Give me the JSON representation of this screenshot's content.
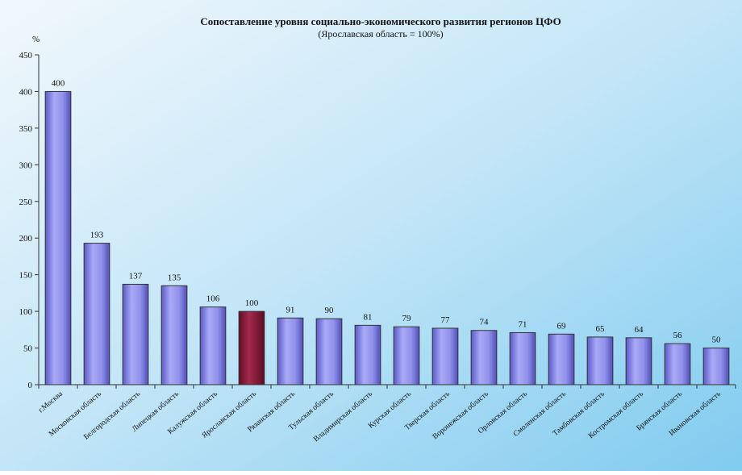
{
  "chart_data": {
    "type": "bar",
    "title": "Сопоставление уровня социально-экономического развития регионов ЦФО",
    "subtitle": "(Ярославская область = 100%)",
    "ylabel": "%",
    "xlabel": "",
    "ylim": [
      0,
      450
    ],
    "yticks": [
      0,
      50,
      100,
      150,
      200,
      250,
      300,
      350,
      400,
      450
    ],
    "grid": false,
    "legend": "none",
    "categories": [
      "г.Москва",
      "Московская область",
      "Белгородская область",
      "Липецкая область",
      "Калужская область",
      "Ярославская область",
      "Рязанская область",
      "Тульская область",
      "Владимирская область",
      "Курская область",
      "Тверская область",
      "Воронежская область",
      "Орловская область",
      "Смоленская область",
      "Тамбовская область",
      "Костромская область",
      "Брянская область",
      "Ивановская область"
    ],
    "values": [
      400,
      193,
      137,
      135,
      106,
      100,
      91,
      90,
      81,
      79,
      77,
      74,
      71,
      69,
      65,
      64,
      56,
      50
    ],
    "highlight_index": 5,
    "colors": {
      "bar": "#8f8fe8",
      "bar_highlight": "#8b1a3a",
      "plot_bg_top": "#e9f4fb",
      "plot_bg_bottom": "#8fd0f0"
    }
  }
}
